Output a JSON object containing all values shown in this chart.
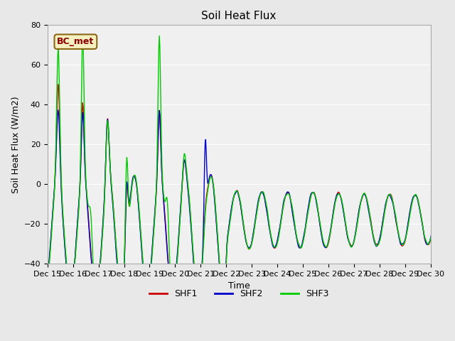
{
  "title": "Soil Heat Flux",
  "ylabel": "Soil Heat Flux (W/m2)",
  "xlabel": "Time",
  "annotation": "BC_met",
  "ylim": [
    -40,
    80
  ],
  "yticks": [
    -40,
    -20,
    0,
    20,
    40,
    60,
    80
  ],
  "colors": {
    "SHF1": "#cc0000",
    "SHF2": "#0000cc",
    "SHF3": "#00cc00"
  },
  "bg_color": "#e8e8e8",
  "plot_bg_color": "#f0f0f0",
  "title_fontsize": 11,
  "label_fontsize": 9,
  "tick_fontsize": 8,
  "linewidth": 1.0
}
